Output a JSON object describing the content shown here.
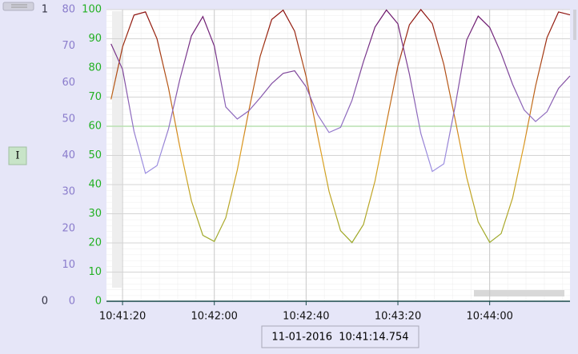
{
  "chart_data": {
    "type": "line",
    "x": [
      "10:41:15",
      "10:41:20",
      "10:41:25",
      "10:41:30",
      "10:41:35",
      "10:41:40",
      "10:41:45",
      "10:41:50",
      "10:41:55",
      "10:42:00",
      "10:42:05",
      "10:42:10",
      "10:42:15",
      "10:42:20",
      "10:42:25",
      "10:42:30",
      "10:42:35",
      "10:42:40",
      "10:42:45",
      "10:42:50",
      "10:42:55",
      "10:43:00",
      "10:43:05",
      "10:43:10",
      "10:43:15",
      "10:43:20",
      "10:43:25",
      "10:43:30",
      "10:43:35",
      "10:43:40",
      "10:43:45",
      "10:43:50",
      "10:43:55",
      "10:44:00",
      "10:44:05",
      "10:44:10",
      "10:44:15",
      "10:44:20",
      "10:44:25",
      "10:44:30",
      "10:44:35"
    ],
    "xlim": [
      "10:41:13",
      "10:44:35"
    ],
    "xticks": [
      "10:41:20",
      "10:42:00",
      "10:42:40",
      "10:43:20",
      "10:44:00"
    ],
    "ylim": [
      0,
      100
    ],
    "yticks": [
      0,
      10,
      20,
      30,
      40,
      50,
      60,
      70,
      80,
      90,
      100
    ],
    "ycolor": "#22b022",
    "y2lim": [
      0,
      80
    ],
    "y2ticks": [
      0,
      10,
      20,
      30,
      40,
      50,
      60,
      70,
      80
    ],
    "y2color": "#8a7ccc",
    "y3lim": [
      0,
      1
    ],
    "y3ticks": [
      0,
      1
    ],
    "y3color": "#333344",
    "hline": 60,
    "hline_color": "#b8e0b0",
    "grid": true,
    "series": [
      {
        "gradient": [
          "#8b0d0d",
          "#e0a020",
          "#6ab030"
        ],
        "values": [
          69.2,
          87.2,
          98.1,
          99.2,
          90.0,
          73.2,
          52.8,
          34.4,
          22.6,
          20.5,
          28.6,
          45.0,
          65.2,
          84.0,
          96.6,
          99.8,
          92.6,
          77.0,
          56.9,
          37.7,
          24.2,
          20.1,
          26.3,
          41.2,
          61.0,
          80.6,
          94.8,
          100,
          95.2,
          81.2,
          62.1,
          42.4,
          27.2,
          20.2,
          23.2,
          35.4,
          53.8,
          73.8,
          90.4,
          99.2,
          98.2
        ]
      },
      {
        "gradient": [
          "#6a1066",
          "#9c8ee0",
          "#9c8ee0"
        ],
        "axis": "y2",
        "values": [
          70.6,
          63.6,
          46.6,
          35.1,
          37.2,
          47.2,
          60.9,
          72.8,
          78.1,
          70.0,
          53.3,
          50.0,
          52.2,
          55.8,
          59.7,
          62.5,
          63.2,
          58.8,
          51.2,
          46.3,
          47.7,
          55.1,
          65.7,
          75.2,
          79.9,
          76.1,
          62.3,
          46.0,
          35.6,
          37.7,
          53.7,
          71.7,
          78.2,
          75.1,
          68.0,
          59.5,
          52.5,
          49.3,
          52.0,
          58.4,
          61.8
        ]
      }
    ]
  },
  "button_label": "I",
  "timestamp": "11-01-2016  10:41:14.754"
}
